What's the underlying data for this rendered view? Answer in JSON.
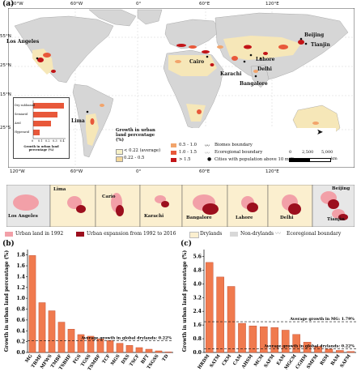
{
  "panel_labels": {
    "a": "(a)",
    "b": "(b)",
    "c": "(c)"
  },
  "map": {
    "lon_labels": [
      "120°W",
      "60°W",
      "0°",
      "60°E",
      "120°E"
    ],
    "lat_labels": [
      "55°N",
      "25°N",
      "15°N",
      "25°S"
    ],
    "cities": [
      "Los Angeles",
      "Lima",
      "Cairo",
      "Karachi",
      "Lahore",
      "Delhi",
      "Bangalore",
      "Beijing",
      "Tianjin"
    ],
    "legend": {
      "title": "Growth in urban land percentage (%)",
      "classes": [
        "< 0.22 (average)",
        "0.22 - 0.5",
        "0.5 - 1.0",
        "1.0 - 1.5",
        "> 1.5"
      ],
      "class_colors": [
        "#f6f1c7",
        "#f3d79a",
        "#f2a46b",
        "#e8583a",
        "#c21418"
      ],
      "other": [
        "Biomes boundary",
        "Ecoregional boundary",
        "Cities with population above 10 million"
      ],
      "scale_labels": [
        "0",
        "2,500",
        "5,000"
      ],
      "scale_unit": "km"
    },
    "inset": {
      "categories": [
        "Dry subhumid",
        "Semiarid",
        "Arid",
        "Hyperarid"
      ],
      "xlabel": "Growth in urban land percentage (%)",
      "ticks": [
        "0",
        "0.1",
        "0.2",
        "0.3",
        "0.4"
      ]
    }
  },
  "strip": {
    "cities": [
      "Los Angeles",
      "Lima",
      "Cario",
      "Karachi",
      "Bangalore",
      "Lahore",
      "Delhi",
      "Beijing",
      "Tianjin"
    ]
  },
  "legend_row": {
    "urban_1992": "Urban land in 1992",
    "expansion": "Urban expansion from 1992 to 2016",
    "drylands": "Drylands",
    "non_drylands": "Non-drylands",
    "ecoregional": "Ecoregional boundary"
  },
  "colors": {
    "bar": "#f07a4e",
    "bar_stroke": "#b8442a",
    "urban_1992": "#f2a0a8",
    "expansion": "#9c0f1e",
    "land": "#d8d8d8",
    "dryland": "#fbefcf"
  },
  "chart_data": [
    {
      "type": "bar",
      "panel": "b",
      "categories": [
        "MG",
        "TBMF",
        "MFWS",
        "TMBF",
        "TSBHF",
        "FGS",
        "TGSS",
        "TSMBF",
        "TCF",
        "MGS",
        "DXS",
        "TSCF",
        "BFT",
        "TSGSS",
        "TD"
      ],
      "values": [
        1.79,
        0.92,
        0.77,
        0.56,
        0.43,
        0.33,
        0.3,
        0.25,
        0.22,
        0.17,
        0.13,
        0.09,
        0.06,
        0.03,
        0.01
      ],
      "ylabel": "Growth in urban land percentage (%)",
      "yticks": [
        0,
        0.2,
        0.4,
        0.6,
        0.8,
        1.0,
        1.2,
        1.4,
        1.6,
        1.8
      ],
      "ylim": [
        0,
        1.9
      ],
      "reference_line": {
        "value": 0.22,
        "label": "Average growth in global drylands:  0.22%"
      }
    },
    {
      "type": "bar",
      "panel": "c",
      "categories": [
        "HRDM",
        "SATM",
        "CKM",
        "CAM",
        "AHSM",
        "MCM",
        "SAFM",
        "EAM",
        "MGCM",
        "CGHM",
        "SMFM",
        "RSM",
        "BAM",
        "SAFM"
      ],
      "values": [
        5.25,
        4.4,
        3.85,
        1.7,
        1.55,
        1.5,
        1.45,
        1.3,
        1.05,
        0.6,
        0.35,
        0.2,
        0.12,
        0.06
      ],
      "ylabel": "Growth in urban land percentage (%)",
      "yticks": [
        0,
        0.8,
        1.6,
        2.4,
        3.2,
        4.0,
        4.8,
        5.6
      ],
      "ylim": [
        0,
        6.0
      ],
      "reference_lines": [
        {
          "value": 1.79,
          "label": "Average growth in MG:  1.79%"
        },
        {
          "value": 0.22,
          "label": "Average growth in global drylands:  0.22%"
        }
      ]
    }
  ]
}
